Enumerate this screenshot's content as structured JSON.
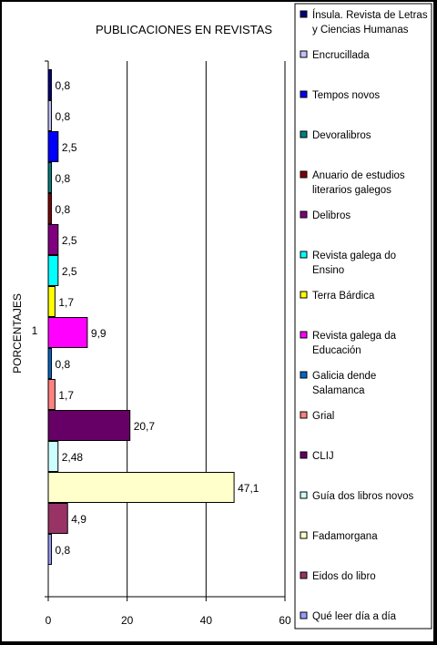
{
  "chart_data": {
    "type": "bar",
    "orientation": "horizontal",
    "title": "PUBLICACIONES EN REVISTAS",
    "ylabel": "PORCENTAJES",
    "category_label": "1",
    "xlim": [
      0,
      60
    ],
    "x_ticks": [
      0,
      20,
      40,
      60
    ],
    "grid": true,
    "legend_position": "right",
    "series": [
      {
        "name": "Ínsula. Revista de Letras y Ciencias Humanas",
        "value": 0.8,
        "label": "0,8",
        "color": "#000080"
      },
      {
        "name": "Encrucillada",
        "value": 0.8,
        "label": "0,8",
        "color": "#c0c0ff"
      },
      {
        "name": "Tempos novos",
        "value": 2.5,
        "label": "2,5",
        "color": "#0000ff"
      },
      {
        "name": "Devoralibros",
        "value": 0.8,
        "label": "0,8",
        "color": "#008080"
      },
      {
        "name": "Anuario de estudios literarios galegos",
        "value": 0.8,
        "label": "0,8",
        "color": "#800000"
      },
      {
        "name": "Delibros",
        "value": 2.5,
        "label": "2,5",
        "color": "#800080"
      },
      {
        "name": "Revista galega do Ensino",
        "value": 2.5,
        "label": "2,5",
        "color": "#00ffff"
      },
      {
        "name": "Terra Bárdica",
        "value": 1.7,
        "label": "1,7",
        "color": "#ffff00"
      },
      {
        "name": "Revista galega da Educación",
        "value": 9.9,
        "label": "9,9",
        "color": "#ff00ff"
      },
      {
        "name": "Galicia dende Salamanca",
        "value": 0.8,
        "label": "0,8",
        "color": "#0066cc"
      },
      {
        "name": "Grial",
        "value": 1.7,
        "label": "1,7",
        "color": "#ff8080"
      },
      {
        "name": "CLIJ",
        "value": 20.7,
        "label": "20,7",
        "color": "#660066"
      },
      {
        "name": "Guía dos libros novos",
        "value": 2.48,
        "label": "2,48",
        "color": "#ccffff"
      },
      {
        "name": "Fadamorgana",
        "value": 47.1,
        "label": "47,1",
        "color": "#ffffcc"
      },
      {
        "name": "Eidos do libro",
        "value": 4.9,
        "label": "4,9",
        "color": "#993366"
      },
      {
        "name": "Qué leer día a día",
        "value": 0.8,
        "label": "0,8",
        "color": "#9999ff"
      }
    ]
  }
}
